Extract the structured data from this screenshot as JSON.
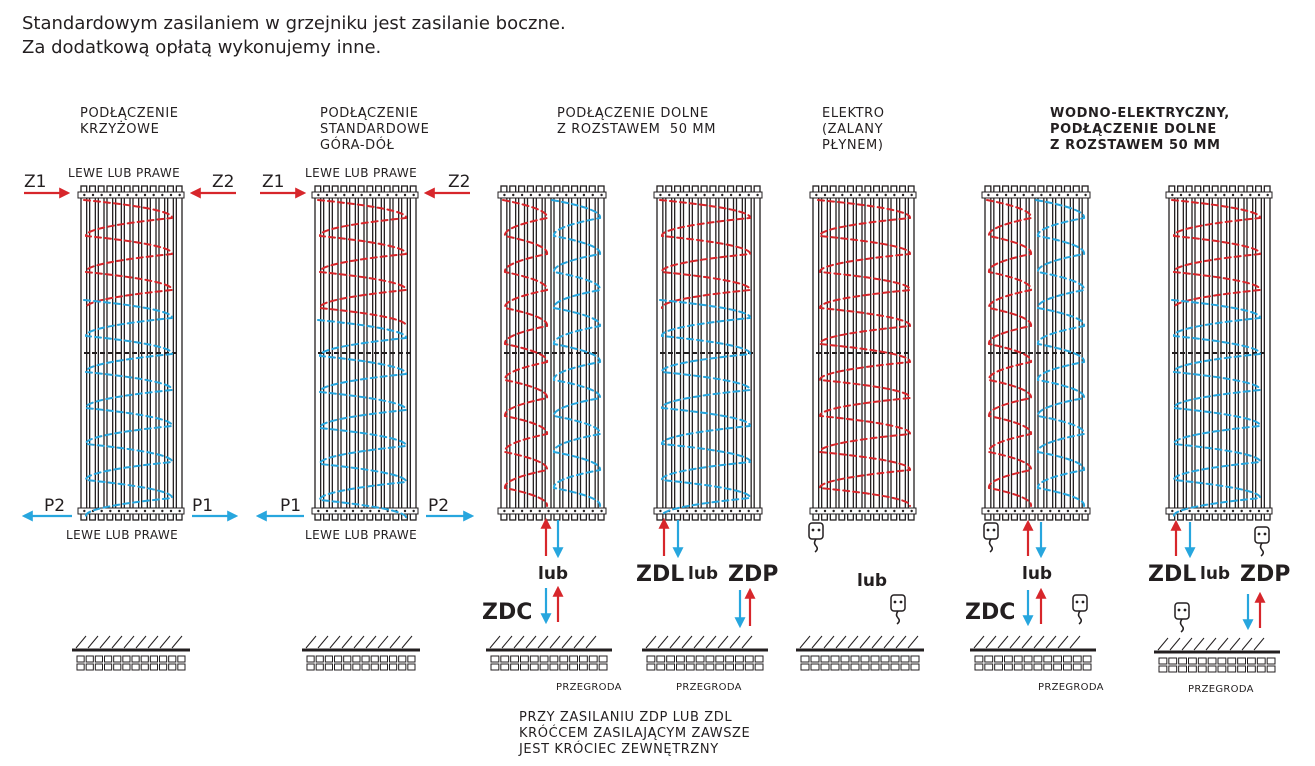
{
  "intro": {
    "line1": "Standardowym zasilaniem w grzejniku jest zasilanie boczne.",
    "line2": "Za dodatkową opłatą wykonujemy inne."
  },
  "sections": {
    "cross": "PODŁĄCZENIE\nKRZYŻOWE",
    "standard": "PODŁĄCZENIE\nSTANDARDOWE\nGÓRA-DÓŁ",
    "bottom": "PODŁĄCZENIE DOLNE\nZ ROZSTAWEM  50 MM",
    "electro": "ELEKTRO\n(ZALANY\nPŁYNEM)",
    "hybrid": "WODNO-ELEKTRYCZNY,\nPODŁĄCZENIE DOLNE\nZ ROZSTAWEM 50 MM"
  },
  "labels": {
    "left_or_right": "LEWE LUB PRAWE",
    "z1": "Z1",
    "z2": "Z2",
    "p1": "P1",
    "p2": "P2",
    "lub": "lub",
    "zdc": "ZDC",
    "zdl": "ZDL",
    "zdp": "ZDP",
    "partition": "PRZEGRODA"
  },
  "note": "PRZY ZASILANIU ZDP LUB ZDL\nKRÓĆCEM ZASILAJĄCYM ZAWSZE\nJEST KRÓCIEC ZEWNĘTRZNY",
  "colors": {
    "supply": "#d7262b",
    "return": "#27a6de",
    "ink": "#231f20"
  },
  "icons": [
    "plug-icon",
    "arrow-up-icon",
    "arrow-down-icon",
    "arrow-left-icon",
    "arrow-right-icon",
    "wall-hatch-icon"
  ]
}
